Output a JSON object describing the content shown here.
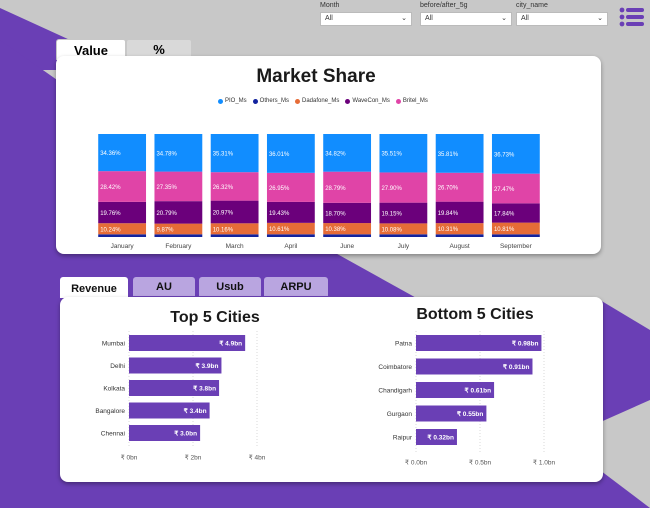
{
  "slicers": [
    {
      "label": "Month",
      "value": "All"
    },
    {
      "label": "before/after_5g",
      "value": "All"
    },
    {
      "label": "city_name",
      "value": "All"
    }
  ],
  "top_tabs": [
    {
      "label": "Value"
    },
    {
      "label": "%"
    }
  ],
  "bottom_tabs": [
    {
      "label": "Revenue"
    },
    {
      "label": "AU"
    },
    {
      "label": "Usub"
    },
    {
      "label": "ARPU"
    }
  ],
  "colors": {
    "pio": "#118dff",
    "others": "#12239e",
    "dadafone": "#e66c37",
    "wavecon": "#6b007b",
    "britel": "#e044a7",
    "bar": "#6a3fb5",
    "purple": "#6a3fb5"
  },
  "market_share": {
    "title": "Market Share",
    "chart_data": {
      "type": "bar",
      "stacked": "100%",
      "categories": [
        "January",
        "February",
        "March",
        "April",
        "June",
        "July",
        "August",
        "September"
      ],
      "series": [
        {
          "name": "PIO_Ms",
          "values": [
            34.36,
            34.78,
            35.31,
            36.01,
            34.82,
            35.51,
            35.81,
            36.73
          ],
          "labels": [
            "34.36%",
            "34.78%",
            "35.31%",
            "36.01%",
            "34.82%",
            "35.51%",
            "35.81%",
            "36.73%"
          ]
        },
        {
          "name": "Others_Ms",
          "values": [
            2.5,
            2.5,
            2.5,
            2.5,
            2.5,
            2.5,
            2.5,
            2.5
          ]
        },
        {
          "name": "Dadafone_Ms",
          "values": [
            10.24,
            9.87,
            10.16,
            10.61,
            10.38,
            10.08,
            10.31,
            10.81
          ],
          "labels": [
            "10.24%",
            "9.87%",
            "10.16%",
            "10.61%",
            "10.38%",
            "10.08%",
            "10.31%",
            "10.81%"
          ]
        },
        {
          "name": "WaveCon_Ms",
          "values": [
            19.76,
            20.79,
            20.97,
            19.43,
            18.7,
            19.15,
            19.84,
            17.84
          ],
          "labels": [
            "19.76%",
            "20.79%",
            "20.97%",
            "19.43%",
            "18.70%",
            "19.15%",
            "19.84%",
            "17.84%"
          ]
        },
        {
          "name": "Britel_Ms",
          "values": [
            28.42,
            27.35,
            26.32,
            26.95,
            28.79,
            27.9,
            26.7,
            27.47
          ],
          "labels": [
            "28.42%",
            "27.35%",
            "26.32%",
            "26.95%",
            "28.79%",
            "27.90%",
            "26.70%",
            "27.47%"
          ]
        }
      ],
      "legend_position": "top"
    }
  },
  "top5": {
    "title": "Top 5 Cities",
    "chart_data": {
      "type": "bar",
      "orientation": "horizontal",
      "categories": [
        "Mumbai",
        "Delhi",
        "Kolkata",
        "Bangalore",
        "Chennai"
      ],
      "values": [
        4.9,
        3.9,
        3.8,
        3.4,
        3.0
      ],
      "labels": [
        "₹ 4.9bn",
        "₹ 3.9bn",
        "₹ 3.8bn",
        "₹ 3.4bn",
        "₹ 3.0bn"
      ],
      "xticks": [
        "₹ 0bn",
        "₹ 2bn",
        "₹ 4bn"
      ],
      "xlim": [
        0,
        5.4
      ]
    }
  },
  "bottom5": {
    "title": "Bottom 5 Cities",
    "chart_data": {
      "type": "bar",
      "orientation": "horizontal",
      "categories": [
        "Patna",
        "Coimbatore",
        "Chandigarh",
        "Gurgaon",
        "Raipur"
      ],
      "values": [
        0.98,
        0.91,
        0.61,
        0.55,
        0.32
      ],
      "labels": [
        "₹ 0.98bn",
        "₹ 0.91bn",
        "₹ 0.61bn",
        "₹ 0.55bn",
        "₹ 0.32bn"
      ],
      "xticks": [
        "₹ 0.0bn",
        "₹ 0.5bn",
        "₹ 1.0bn"
      ],
      "xlim": [
        0,
        1.0
      ]
    }
  }
}
